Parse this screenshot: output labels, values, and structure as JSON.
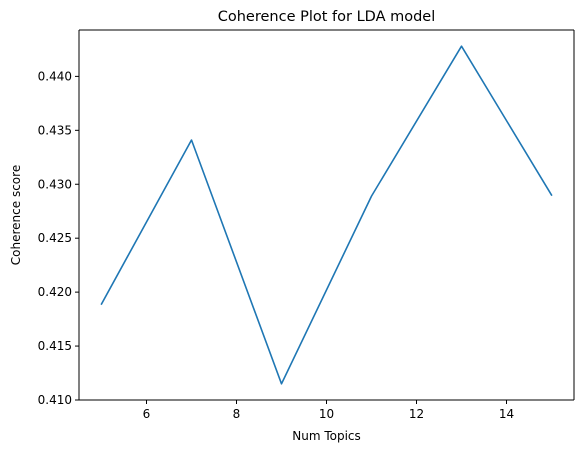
{
  "chart_data": {
    "type": "line",
    "title": "Coherence Plot for LDA model",
    "xlabel": "Num Topics",
    "ylabel": "Coherence score",
    "xlim": [
      4.5,
      15.5
    ],
    "ylim": [
      0.41,
      0.4443
    ],
    "xticks": [
      6,
      8,
      10,
      12,
      14
    ],
    "xtick_labels": [
      "6",
      "8",
      "10",
      "12",
      "14"
    ],
    "yticks": [
      0.41,
      0.415,
      0.42,
      0.425,
      0.43,
      0.435,
      0.44
    ],
    "ytick_labels": [
      "0.410",
      "0.415",
      "0.420",
      "0.425",
      "0.430",
      "0.435",
      "0.440"
    ],
    "grid": false,
    "legend": false,
    "series": [
      {
        "color": "#1f77b4",
        "x": [
          5,
          7,
          9,
          11,
          13,
          15
        ],
        "y": [
          0.4189,
          0.4341,
          0.4115,
          0.4289,
          0.4428,
          0.429
        ]
      }
    ]
  }
}
